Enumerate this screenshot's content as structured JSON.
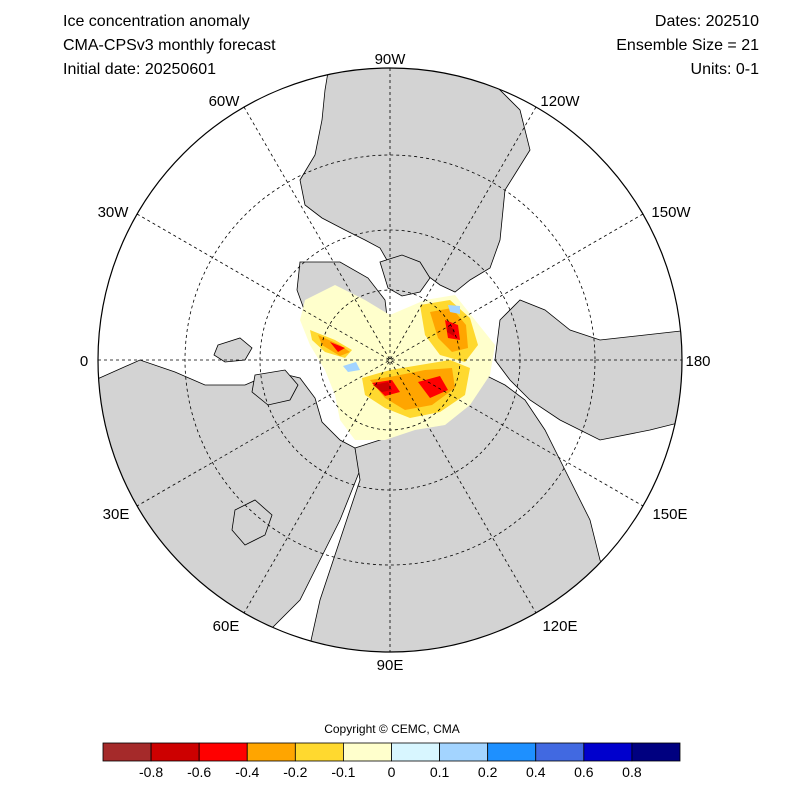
{
  "header": {
    "title": "Ice concentration anomaly",
    "model": "CMA-CPSv3 monthly forecast",
    "initial_date": "Initial date: 20250601",
    "dates": "Dates: 202510",
    "ensemble": "Ensemble Size = 21",
    "units": "Units: 0-1"
  },
  "map": {
    "projection": "north polar stereographic",
    "land_color": "#d3d3d3",
    "ocean_color": "#ffffff",
    "graticule": "dashed",
    "longitude_labels": {
      "top": "90W",
      "bottom": "90E",
      "left": "0",
      "right": "180",
      "upper_left_60": "60W",
      "upper_right_120": "120W",
      "upper_left_30": "30W",
      "upper_right_150": "150W",
      "lower_left_30": "30E",
      "lower_right_150": "150E",
      "lower_left_60": "60E",
      "lower_right_120": "120E"
    }
  },
  "copyright": "Copyright © CEMC, CMA",
  "colorbar": {
    "colors": [
      "#a52a2a",
      "#cd0000",
      "#ff0000",
      "#ffa500",
      "#ffd92f",
      "#ffffcc",
      "#d8f6ff",
      "#a3d4ff",
      "#1e90ff",
      "#4169e1",
      "#0000cd",
      "#000080"
    ],
    "ticks": [
      "-0.8",
      "-0.6",
      "-0.4",
      "-0.2",
      "-0.1",
      "0",
      "0.1",
      "0.2",
      "0.4",
      "0.6",
      "0.8"
    ]
  }
}
